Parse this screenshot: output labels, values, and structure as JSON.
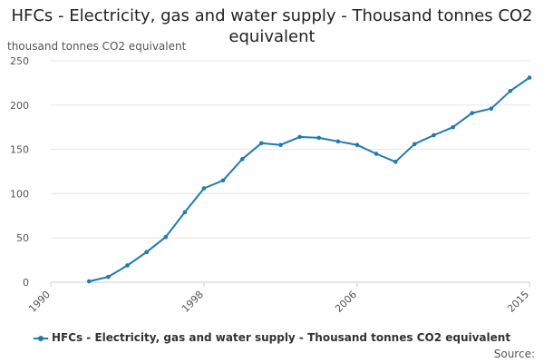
{
  "chart_data": {
    "type": "line",
    "title": "HFCs - Electricity, gas and water supply - Thousand tonnes CO2 equivalent",
    "ylabel": "thousand tonnes CO2 equivalent",
    "xlabel": "",
    "ylim": [
      0,
      250
    ],
    "yticks": [
      0,
      50,
      100,
      150,
      200,
      250
    ],
    "xlim": [
      1990,
      2015
    ],
    "xticks": [
      1990,
      1998,
      2006,
      2015
    ],
    "grid": true,
    "legend_position": "bottom",
    "colors": {
      "series": "#1f7ab5",
      "grid": "#e6e6e6",
      "axis": "#cccccc"
    },
    "series": [
      {
        "name": "HFCs - Electricity, gas and water supply - Thousand tonnes CO2 equivalent",
        "x": [
          1992,
          1993,
          1994,
          1995,
          1996,
          1997,
          1998,
          1999,
          2000,
          2001,
          2002,
          2003,
          2004,
          2005,
          2006,
          2007,
          2008,
          2009,
          2010,
          2011,
          2012,
          2013,
          2014,
          2015
        ],
        "values": [
          1,
          6,
          19,
          34,
          51,
          79,
          106,
          115,
          139,
          157,
          155,
          164,
          163,
          159,
          155,
          145,
          136,
          156,
          166,
          175,
          191,
          196,
          216,
          231
        ]
      }
    ]
  },
  "source_label": "Source:"
}
